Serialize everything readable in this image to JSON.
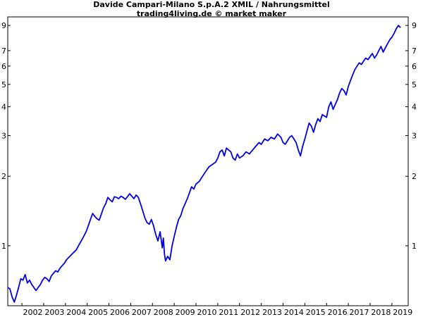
{
  "header": {
    "title": "Davide Campari-Milano S.p.A.2 XMIL / Nahrungsmittel",
    "subtitle": "trading4living.de © market maker"
  },
  "colors": {
    "line": "#0000e6",
    "frame": "#000000",
    "background": "#ffffff"
  },
  "chart_data": {
    "type": "line",
    "title": "Davide Campari-Milano S.p.A.2 XMIL / Nahrungsmittel",
    "subtitle": "trading4living.de © market maker",
    "xlabel": "",
    "ylabel": "",
    "y_scale": "log",
    "ylim": [
      0.55,
      9.8
    ],
    "xlim": [
      2001.35,
      2019.75
    ],
    "grid": false,
    "legend": "none",
    "x_ticks": [
      "2002",
      "2003",
      "2004",
      "2005",
      "2006",
      "2007",
      "2008",
      "2009",
      "2010",
      "2011",
      "2012",
      "2013",
      "2014",
      "2015",
      "2016",
      "2017",
      "2018",
      "2019"
    ],
    "y_ticks_left": [
      "9",
      "7",
      "6",
      "5",
      "4",
      "3",
      "2",
      "1"
    ],
    "y_ticks_right": [
      "9",
      "7",
      "6",
      "5",
      "4",
      "3",
      "2",
      "1"
    ],
    "series": [
      {
        "x": [
          2001.35,
          2001.45,
          2001.55,
          2001.65,
          2001.75,
          2001.85,
          2001.95,
          2002.05,
          2002.15,
          2002.25,
          2002.35,
          2002.45,
          2002.55,
          2002.65,
          2002.75,
          2002.85,
          2002.95,
          2003.05,
          2003.15,
          2003.25,
          2003.35,
          2003.45,
          2003.55,
          2003.65,
          2003.75,
          2003.85,
          2003.95,
          2004.05,
          2004.2,
          2004.35,
          2004.5,
          2004.65,
          2004.8,
          2004.95,
          2005.05,
          2005.15,
          2005.25,
          2005.35,
          2005.45,
          2005.55,
          2005.65,
          2005.75,
          2005.85,
          2005.95,
          2006.05,
          2006.15,
          2006.25,
          2006.35,
          2006.45,
          2006.55,
          2006.65,
          2006.75,
          2006.85,
          2006.95,
          2007.05,
          2007.15,
          2007.25,
          2007.35,
          2007.45,
          2007.55,
          2007.65,
          2007.75,
          2007.85,
          2007.95,
          2008.05,
          2008.15,
          2008.25,
          2008.35,
          2008.45,
          2008.5,
          2008.55,
          2008.6,
          2008.7,
          2008.8,
          2008.9,
          2009.0,
          2009.1,
          2009.2,
          2009.3,
          2009.4,
          2009.5,
          2009.6,
          2009.7,
          2009.8,
          2009.9,
          2010.0,
          2010.15,
          2010.3,
          2010.45,
          2010.6,
          2010.75,
          2010.9,
          2011.0,
          2011.1,
          2011.2,
          2011.3,
          2011.4,
          2011.5,
          2011.6,
          2011.7,
          2011.8,
          2011.9,
          2012.0,
          2012.15,
          2012.3,
          2012.45,
          2012.6,
          2012.75,
          2012.9,
          2013.0,
          2013.15,
          2013.3,
          2013.45,
          2013.6,
          2013.75,
          2013.9,
          2014.0,
          2014.1,
          2014.2,
          2014.3,
          2014.4,
          2014.5,
          2014.6,
          2014.7,
          2014.8,
          2014.9,
          2015.0,
          2015.1,
          2015.2,
          2015.3,
          2015.4,
          2015.5,
          2015.6,
          2015.7,
          2015.8,
          2015.9,
          2016.0,
          2016.1,
          2016.2,
          2016.3,
          2016.4,
          2016.5,
          2016.6,
          2016.7,
          2016.8,
          2016.9,
          2017.0,
          2017.1,
          2017.2,
          2017.3,
          2017.4,
          2017.5,
          2017.6,
          2017.7,
          2017.8,
          2017.9,
          2018.0,
          2018.1,
          2018.2,
          2018.3,
          2018.4,
          2018.5,
          2018.6,
          2018.7,
          2018.8,
          2018.9,
          2019.0,
          2019.1,
          2019.2,
          2019.3,
          2019.4
        ],
        "y": [
          0.66,
          0.65,
          0.6,
          0.57,
          0.61,
          0.66,
          0.72,
          0.71,
          0.75,
          0.69,
          0.71,
          0.68,
          0.66,
          0.64,
          0.66,
          0.68,
          0.71,
          0.73,
          0.72,
          0.7,
          0.74,
          0.76,
          0.78,
          0.77,
          0.8,
          0.82,
          0.84,
          0.87,
          0.9,
          0.93,
          0.96,
          1.02,
          1.08,
          1.15,
          1.22,
          1.3,
          1.38,
          1.34,
          1.31,
          1.29,
          1.37,
          1.46,
          1.52,
          1.62,
          1.58,
          1.55,
          1.63,
          1.62,
          1.6,
          1.64,
          1.62,
          1.59,
          1.63,
          1.68,
          1.64,
          1.6,
          1.66,
          1.62,
          1.52,
          1.42,
          1.32,
          1.26,
          1.24,
          1.3,
          1.22,
          1.12,
          1.05,
          1.15,
          0.98,
          1.08,
          0.92,
          0.86,
          0.9,
          0.87,
          1.0,
          1.1,
          1.2,
          1.3,
          1.35,
          1.45,
          1.52,
          1.6,
          1.7,
          1.8,
          1.76,
          1.85,
          1.9,
          2.0,
          2.1,
          2.2,
          2.25,
          2.3,
          2.4,
          2.55,
          2.6,
          2.45,
          2.65,
          2.6,
          2.55,
          2.4,
          2.35,
          2.5,
          2.4,
          2.45,
          2.55,
          2.5,
          2.6,
          2.7,
          2.8,
          2.75,
          2.9,
          2.85,
          2.95,
          2.9,
          3.05,
          2.95,
          2.8,
          2.75,
          2.85,
          2.95,
          3.0,
          2.9,
          2.8,
          2.6,
          2.45,
          2.7,
          2.9,
          3.15,
          3.4,
          3.3,
          3.1,
          3.35,
          3.55,
          3.45,
          3.7,
          3.65,
          3.6,
          4.0,
          4.2,
          3.9,
          4.1,
          4.3,
          4.6,
          4.8,
          4.7,
          4.5,
          4.9,
          5.2,
          5.5,
          5.8,
          6.0,
          6.2,
          6.1,
          6.3,
          6.5,
          6.4,
          6.6,
          6.8,
          6.5,
          6.7,
          7.0,
          7.3,
          6.9,
          7.2,
          7.5,
          7.8,
          8.0,
          8.3,
          8.7,
          9.0,
          8.8
        ]
      }
    ]
  }
}
